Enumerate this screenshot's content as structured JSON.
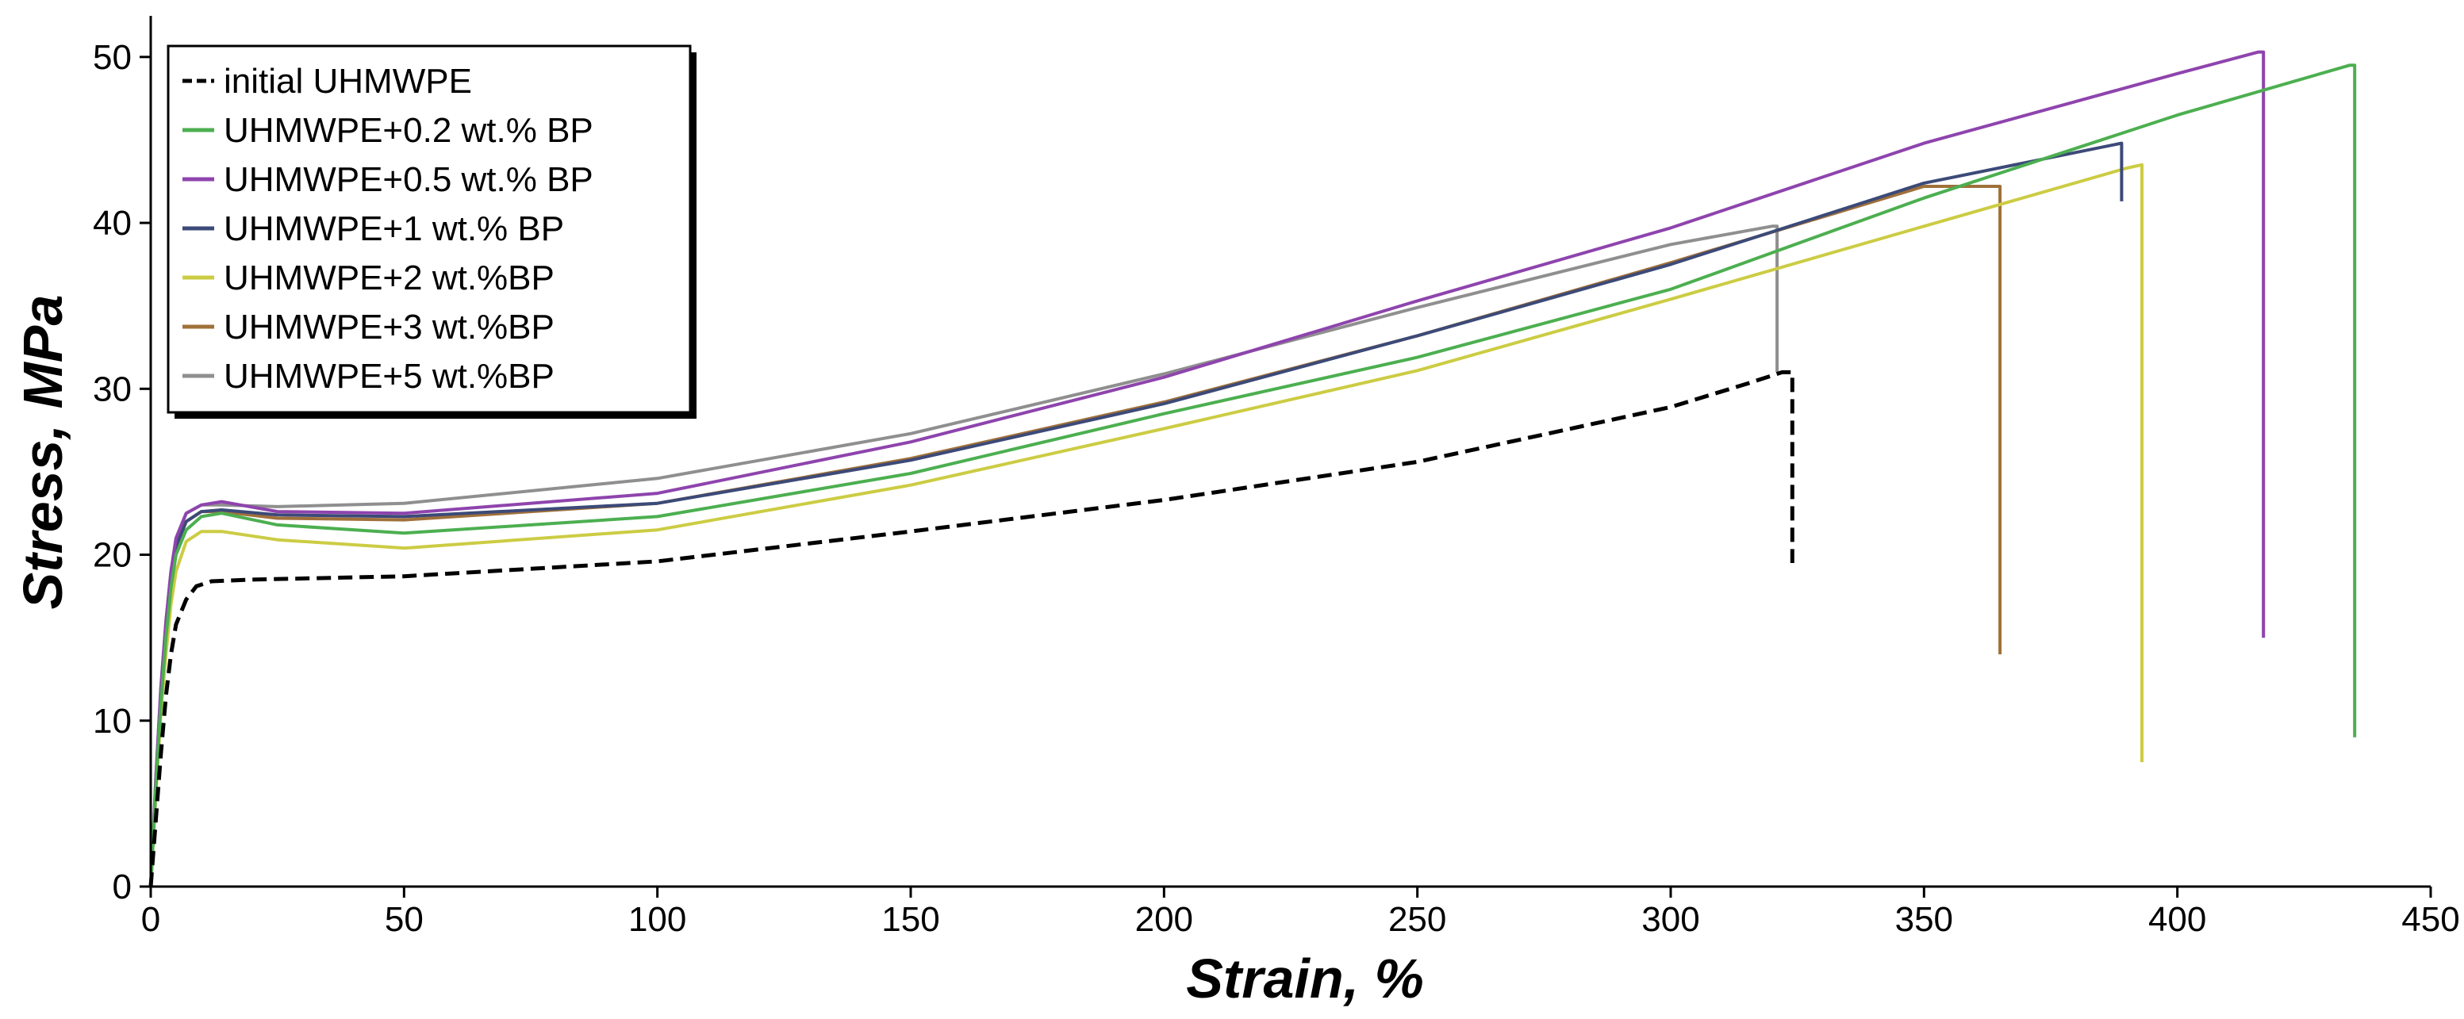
{
  "chart_data": {
    "type": "line",
    "title": "",
    "xlabel": "Strain, %",
    "ylabel": "Stress, MPa",
    "xlim": [
      0,
      450
    ],
    "ylim": [
      0,
      52
    ],
    "xticks": [
      0,
      50,
      100,
      150,
      200,
      250,
      300,
      350,
      400,
      450
    ],
    "yticks": [
      0,
      10,
      20,
      30,
      40,
      50
    ],
    "grid": false,
    "legend_position": "top-left",
    "series": [
      {
        "name": "initial UHMWPE",
        "color": "#000000",
        "dashed": true,
        "points": [
          [
            0,
            0
          ],
          [
            1,
            4
          ],
          [
            2,
            8
          ],
          [
            3,
            11.5
          ],
          [
            4,
            14
          ],
          [
            5,
            15.8
          ],
          [
            7,
            17.3
          ],
          [
            9,
            18.1
          ],
          [
            12,
            18.4
          ],
          [
            20,
            18.5
          ],
          [
            50,
            18.7
          ],
          [
            100,
            19.6
          ],
          [
            150,
            21.4
          ],
          [
            200,
            23.3
          ],
          [
            250,
            25.6
          ],
          [
            300,
            28.9
          ],
          [
            315,
            30.3
          ],
          [
            322,
            31
          ],
          [
            324,
            31
          ],
          [
            324,
            19.5
          ]
        ]
      },
      {
        "name": "UHMWPE+0.2 wt.% BP",
        "color": "#4caf50",
        "dashed": false,
        "points": [
          [
            0,
            0
          ],
          [
            1,
            6
          ],
          [
            2,
            11
          ],
          [
            3,
            15
          ],
          [
            4,
            18
          ],
          [
            5,
            20
          ],
          [
            7,
            21.5
          ],
          [
            10,
            22.3
          ],
          [
            14,
            22.5
          ],
          [
            25,
            21.8
          ],
          [
            50,
            21.3
          ],
          [
            100,
            22.3
          ],
          [
            150,
            24.9
          ],
          [
            200,
            28.5
          ],
          [
            250,
            31.9
          ],
          [
            300,
            36
          ],
          [
            350,
            41.5
          ],
          [
            400,
            46.5
          ],
          [
            434,
            49.5
          ],
          [
            435,
            49.5
          ],
          [
            435,
            9
          ]
        ]
      },
      {
        "name": "UHMWPE+0.5 wt.% BP",
        "color": "#8e44ad",
        "dashed": false,
        "points": [
          [
            0,
            0
          ],
          [
            1,
            6.5
          ],
          [
            2,
            12
          ],
          [
            3,
            16
          ],
          [
            4,
            19
          ],
          [
            5,
            21
          ],
          [
            7,
            22.5
          ],
          [
            10,
            23
          ],
          [
            14,
            23.2
          ],
          [
            25,
            22.6
          ],
          [
            50,
            22.5
          ],
          [
            100,
            23.7
          ],
          [
            150,
            26.8
          ],
          [
            200,
            30.7
          ],
          [
            250,
            35.3
          ],
          [
            300,
            39.7
          ],
          [
            350,
            44.8
          ],
          [
            400,
            49
          ],
          [
            416,
            50.3
          ],
          [
            417,
            50.3
          ],
          [
            417,
            15
          ]
        ]
      },
      {
        "name": "UHMWPE+1 wt.% BP",
        "color": "#3c4a78",
        "dashed": false,
        "points": [
          [
            0,
            0
          ],
          [
            1,
            6
          ],
          [
            2,
            11.5
          ],
          [
            3,
            15.5
          ],
          [
            4,
            18.5
          ],
          [
            5,
            20.5
          ],
          [
            7,
            22
          ],
          [
            10,
            22.6
          ],
          [
            14,
            22.7
          ],
          [
            25,
            22.4
          ],
          [
            50,
            22.3
          ],
          [
            100,
            23.1
          ],
          [
            150,
            25.7
          ],
          [
            200,
            29.1
          ],
          [
            250,
            33.2
          ],
          [
            300,
            37.5
          ],
          [
            350,
            42.4
          ],
          [
            389,
            44.8
          ],
          [
            389,
            41.3
          ]
        ]
      },
      {
        "name": "UHMWPE+2 wt.%BP",
        "color": "#cccc44",
        "dashed": false,
        "points": [
          [
            0,
            0
          ],
          [
            1,
            5.5
          ],
          [
            2,
            10.5
          ],
          [
            3,
            14
          ],
          [
            4,
            17
          ],
          [
            5,
            19
          ],
          [
            7,
            20.8
          ],
          [
            10,
            21.4
          ],
          [
            14,
            21.4
          ],
          [
            25,
            20.9
          ],
          [
            50,
            20.4
          ],
          [
            100,
            21.5
          ],
          [
            150,
            24.2
          ],
          [
            200,
            27.6
          ],
          [
            250,
            31.1
          ],
          [
            300,
            35.4
          ],
          [
            350,
            39.8
          ],
          [
            390,
            43.3
          ],
          [
            393,
            43.5
          ],
          [
            393,
            7.5
          ]
        ]
      },
      {
        "name": "UHMWPE+3 wt.%BP",
        "color": "#a0703a",
        "dashed": false,
        "points": [
          [
            0,
            0
          ],
          [
            1,
            6
          ],
          [
            2,
            11.5
          ],
          [
            3,
            15.5
          ],
          [
            4,
            18.5
          ],
          [
            5,
            20.5
          ],
          [
            7,
            22
          ],
          [
            10,
            22.6
          ],
          [
            14,
            22.6
          ],
          [
            25,
            22.2
          ],
          [
            50,
            22.1
          ],
          [
            100,
            23.1
          ],
          [
            150,
            25.8
          ],
          [
            200,
            29.2
          ],
          [
            250,
            33.2
          ],
          [
            300,
            37.6
          ],
          [
            350,
            42.2
          ],
          [
            365,
            42.2
          ],
          [
            365,
            14
          ]
        ]
      },
      {
        "name": "UHMWPE+5 wt.%BP",
        "color": "#8f8f8f",
        "dashed": false,
        "points": [
          [
            0,
            0
          ],
          [
            1,
            6.5
          ],
          [
            2,
            12
          ],
          [
            3,
            16
          ],
          [
            4,
            19
          ],
          [
            5,
            21
          ],
          [
            7,
            22.5
          ],
          [
            10,
            23
          ],
          [
            14,
            23
          ],
          [
            25,
            22.9
          ],
          [
            50,
            23.1
          ],
          [
            100,
            24.6
          ],
          [
            150,
            27.3
          ],
          [
            200,
            30.9
          ],
          [
            250,
            34.9
          ],
          [
            300,
            38.7
          ],
          [
            320,
            39.8
          ],
          [
            321,
            39.8
          ],
          [
            321,
            31
          ]
        ]
      }
    ]
  }
}
